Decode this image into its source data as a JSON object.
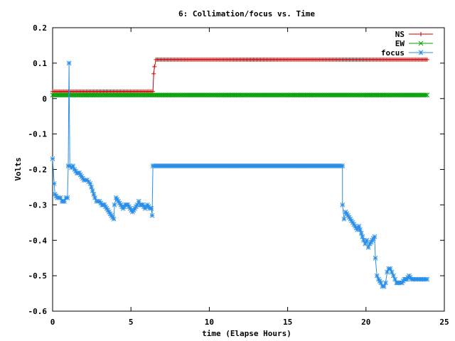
{
  "chart_data": {
    "type": "line",
    "title": "6: Collimation/focus vs. Time",
    "xlabel": "time (Elapse Hours)",
    "ylabel": "Volts",
    "xlim": [
      0,
      25
    ],
    "ylim": [
      -0.6,
      0.2
    ],
    "xticks": [
      0,
      5,
      10,
      15,
      20,
      25
    ],
    "yticks": [
      -0.6,
      -0.5,
      -0.4,
      -0.3,
      -0.2,
      -0.1,
      0,
      0.1,
      0.2
    ],
    "xtick_labels": [
      "0",
      "5",
      "10",
      "15",
      "20",
      "25"
    ],
    "ytick_labels": [
      "-0.6",
      "-0.5",
      "-0.4",
      "-0.3",
      "-0.2",
      "-0.1",
      "0",
      "0.1",
      "0.2"
    ],
    "grid": false,
    "legend_position": "top-right",
    "series": [
      {
        "name": "NS",
        "color": "#cc0000",
        "marker": "plus",
        "points": [
          [
            0.0,
            0.02
          ],
          [
            6.4,
            0.02
          ],
          [
            6.45,
            0.07
          ],
          [
            6.5,
            0.09
          ],
          [
            6.6,
            0.11
          ],
          [
            23.9,
            0.11
          ]
        ]
      },
      {
        "name": "EW",
        "color": "#00a000",
        "marker": "x",
        "points": [
          [
            0.0,
            0.01
          ],
          [
            23.9,
            0.01
          ]
        ]
      },
      {
        "name": "focus",
        "color": "#2a8ee8",
        "marker": "star",
        "points": [
          [
            0.0,
            -0.17
          ],
          [
            0.1,
            -0.24
          ],
          [
            0.15,
            -0.27
          ],
          [
            0.3,
            -0.28
          ],
          [
            0.5,
            -0.28
          ],
          [
            0.6,
            -0.29
          ],
          [
            0.75,
            -0.29
          ],
          [
            0.85,
            -0.28
          ],
          [
            0.95,
            -0.28
          ],
          [
            1.0,
            -0.19
          ],
          [
            1.05,
            0.1
          ],
          [
            1.1,
            -0.19
          ],
          [
            1.2,
            -0.195
          ],
          [
            1.3,
            -0.19
          ],
          [
            1.4,
            -0.2
          ],
          [
            1.55,
            -0.21
          ],
          [
            1.7,
            -0.21
          ],
          [
            1.85,
            -0.22
          ],
          [
            2.0,
            -0.23
          ],
          [
            2.2,
            -0.23
          ],
          [
            2.4,
            -0.24
          ],
          [
            2.55,
            -0.26
          ],
          [
            2.7,
            -0.28
          ],
          [
            2.8,
            -0.29
          ],
          [
            3.0,
            -0.29
          ],
          [
            3.15,
            -0.3
          ],
          [
            3.3,
            -0.3
          ],
          [
            3.45,
            -0.31
          ],
          [
            3.6,
            -0.32
          ],
          [
            3.75,
            -0.33
          ],
          [
            3.9,
            -0.34
          ],
          [
            3.95,
            -0.3
          ],
          [
            4.05,
            -0.28
          ],
          [
            4.2,
            -0.29
          ],
          [
            4.35,
            -0.3
          ],
          [
            4.5,
            -0.31
          ],
          [
            4.65,
            -0.3
          ],
          [
            4.8,
            -0.3
          ],
          [
            4.95,
            -0.31
          ],
          [
            5.1,
            -0.32
          ],
          [
            5.25,
            -0.31
          ],
          [
            5.4,
            -0.3
          ],
          [
            5.5,
            -0.29
          ],
          [
            5.6,
            -0.3
          ],
          [
            5.75,
            -0.3
          ],
          [
            5.9,
            -0.31
          ],
          [
            6.05,
            -0.3
          ],
          [
            6.2,
            -0.31
          ],
          [
            6.3,
            -0.31
          ],
          [
            6.35,
            -0.33
          ],
          [
            6.4,
            -0.19
          ],
          [
            18.5,
            -0.19
          ],
          [
            18.5,
            -0.3
          ],
          [
            18.6,
            -0.34
          ],
          [
            18.7,
            -0.32
          ],
          [
            18.85,
            -0.33
          ],
          [
            19.0,
            -0.34
          ],
          [
            19.15,
            -0.35
          ],
          [
            19.3,
            -0.36
          ],
          [
            19.45,
            -0.37
          ],
          [
            19.55,
            -0.36
          ],
          [
            19.7,
            -0.38
          ],
          [
            19.85,
            -0.4
          ],
          [
            19.95,
            -0.41
          ],
          [
            20.05,
            -0.4
          ],
          [
            20.15,
            -0.42
          ],
          [
            20.25,
            -0.41
          ],
          [
            20.4,
            -0.4
          ],
          [
            20.55,
            -0.39
          ],
          [
            20.6,
            -0.45
          ],
          [
            20.7,
            -0.5
          ],
          [
            20.8,
            -0.51
          ],
          [
            20.95,
            -0.52
          ],
          [
            21.05,
            -0.53
          ],
          [
            21.15,
            -0.53
          ],
          [
            21.25,
            -0.52
          ],
          [
            21.35,
            -0.49
          ],
          [
            21.45,
            -0.48
          ],
          [
            21.55,
            -0.48
          ],
          [
            21.65,
            -0.49
          ],
          [
            21.75,
            -0.5
          ],
          [
            21.85,
            -0.51
          ],
          [
            21.95,
            -0.52
          ],
          [
            22.1,
            -0.52
          ],
          [
            22.3,
            -0.52
          ],
          [
            22.45,
            -0.51
          ],
          [
            22.6,
            -0.51
          ],
          [
            22.75,
            -0.5
          ],
          [
            22.9,
            -0.51
          ],
          [
            23.1,
            -0.51
          ],
          [
            23.3,
            -0.51
          ],
          [
            23.5,
            -0.51
          ],
          [
            23.7,
            -0.51
          ],
          [
            23.9,
            -0.51
          ]
        ]
      }
    ]
  }
}
